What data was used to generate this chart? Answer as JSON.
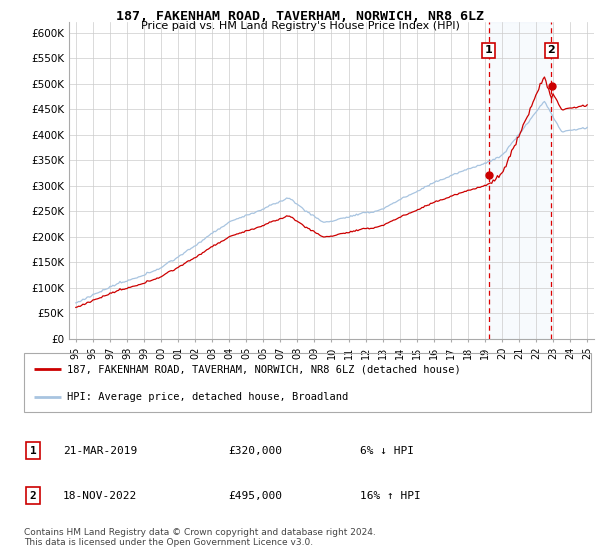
{
  "title": "187, FAKENHAM ROAD, TAVERHAM, NORWICH, NR8 6LZ",
  "subtitle": "Price paid vs. HM Land Registry's House Price Index (HPI)",
  "legend_line1": "187, FAKENHAM ROAD, TAVERHAM, NORWICH, NR8 6LZ (detached house)",
  "legend_line2": "HPI: Average price, detached house, Broadland",
  "annotation1_date": "21-MAR-2019",
  "annotation1_price": "£320,000",
  "annotation1_change": "6% ↓ HPI",
  "annotation2_date": "18-NOV-2022",
  "annotation2_price": "£495,000",
  "annotation2_change": "16% ↑ HPI",
  "footer": "Contains HM Land Registry data © Crown copyright and database right 2024.\nThis data is licensed under the Open Government Licence v3.0.",
  "yticks": [
    0,
    50000,
    100000,
    150000,
    200000,
    250000,
    300000,
    350000,
    400000,
    450000,
    500000,
    550000,
    600000
  ],
  "hpi_color": "#a8c4e0",
  "price_color": "#cc0000",
  "annotation_box_color": "#cc0000",
  "background_color": "#ffffff",
  "grid_color": "#cccccc",
  "highlight_bg": "#ddeeff",
  "sale1_year": 2019.23,
  "sale2_year": 2022.9,
  "sale1_price": 320000,
  "sale2_price": 495000,
  "xstart": 1995,
  "xend": 2025
}
